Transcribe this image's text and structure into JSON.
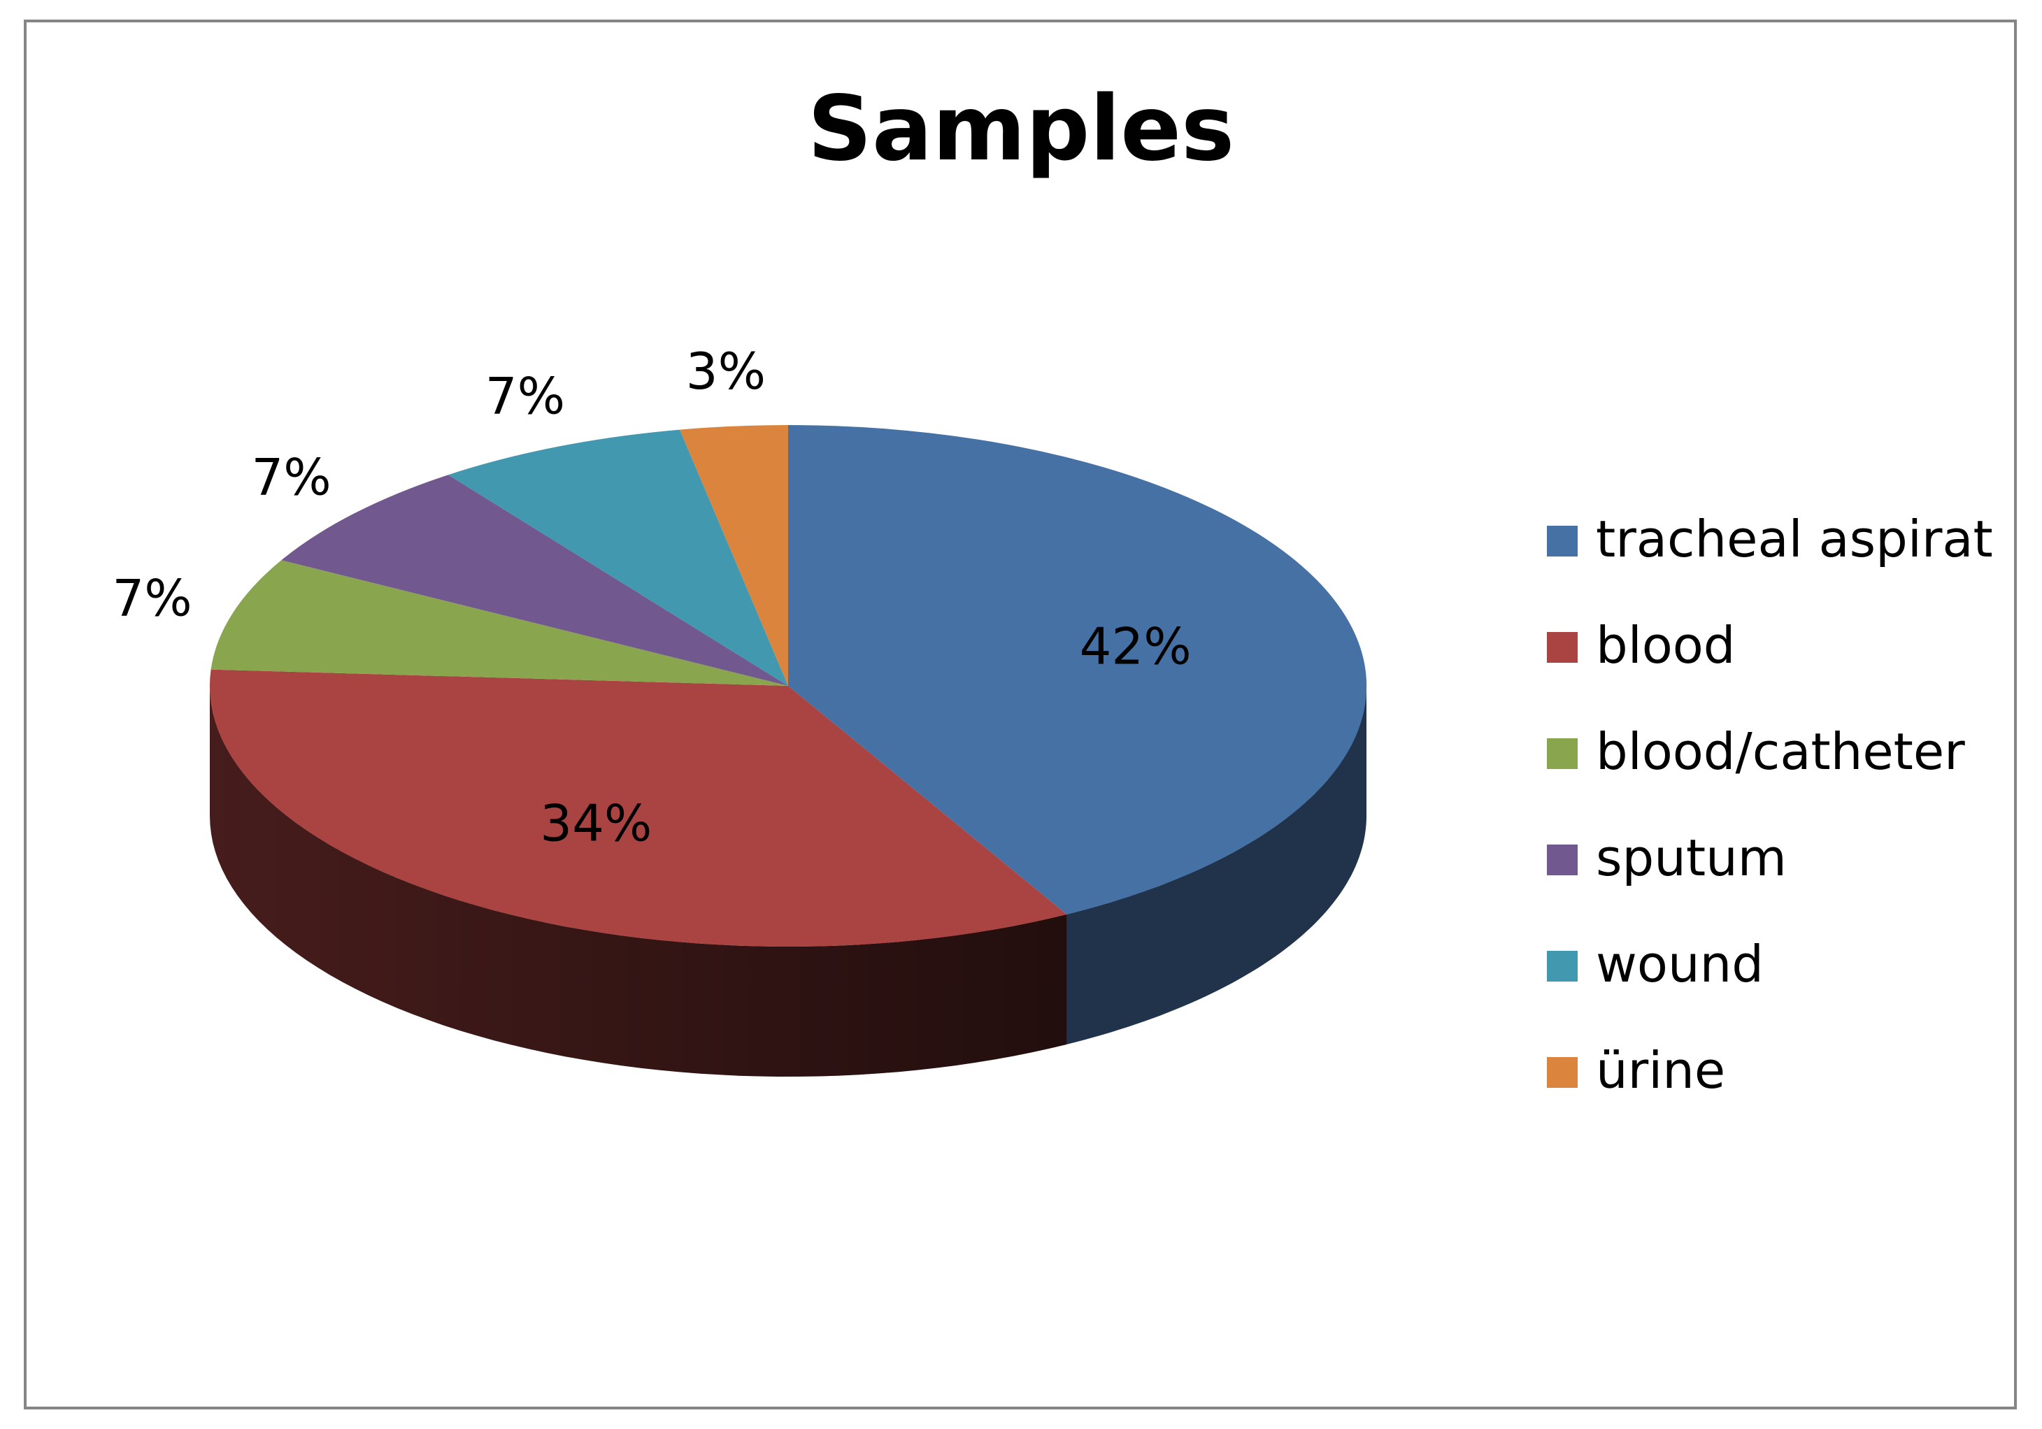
{
  "chart_data": {
    "type": "pie",
    "title": "Samples",
    "categories": [
      "tracheal aspirat",
      "blood",
      "blood/catheter",
      "sputum",
      "wound",
      "ürine"
    ],
    "values": [
      42,
      34,
      7,
      7,
      7,
      3
    ],
    "labels": [
      "42%",
      "34%",
      "7%",
      "7%",
      "7%",
      "3%"
    ],
    "colors": [
      "#4671A5",
      "#A94442",
      "#89A54E",
      "#71588F",
      "#4198AF",
      "#DB843D"
    ],
    "legend": "right",
    "style": "3d"
  }
}
